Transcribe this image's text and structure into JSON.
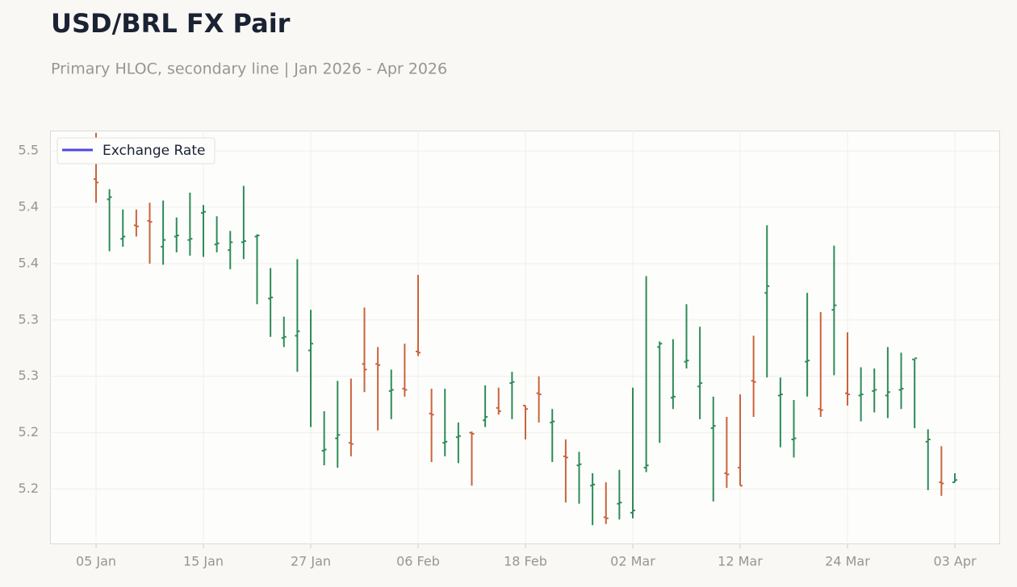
{
  "chart_data": {
    "type": "ohlc",
    "title": "USD/BRL FX Pair",
    "subtitle": "Primary HLOC, secondary line | Jan 2026 - Apr 2026",
    "categories": [
      "05 Jan",
      null,
      null,
      null,
      null,
      null,
      null,
      null,
      "15 Jan",
      null,
      null,
      null,
      null,
      null,
      null,
      null,
      "27 Jan",
      null,
      null,
      null,
      null,
      null,
      null,
      null,
      "06 Feb",
      null,
      null,
      null,
      null,
      null,
      null,
      null,
      "18 Feb",
      null,
      null,
      null,
      null,
      null,
      null,
      null,
      "02 Mar",
      null,
      null,
      null,
      null,
      null,
      null,
      null,
      "12 Mar",
      null,
      null,
      null,
      null,
      null,
      null,
      null,
      "24 Mar",
      null,
      null,
      null,
      null,
      null,
      null,
      null,
      "03 Apr"
    ],
    "series": [
      {
        "name": "Exchange Rate",
        "color": "#4f46e5",
        "up_color": "#2e8b57",
        "down_color": "#c8643c",
        "open": [
          5.475,
          5.457,
          5.422,
          5.434,
          5.438,
          5.415,
          5.424,
          5.421,
          5.445,
          5.417,
          5.412,
          5.419,
          5.424,
          5.369,
          5.334,
          5.336,
          5.323,
          5.234,
          5.245,
          5.241,
          5.311,
          5.311,
          5.287,
          5.289,
          5.322,
          5.267,
          5.241,
          5.246,
          5.25,
          5.261,
          5.272,
          5.294,
          5.274,
          5.285,
          5.259,
          5.229,
          5.221,
          5.203,
          5.175,
          5.187,
          5.179,
          5.219,
          5.326,
          5.281,
          5.313,
          5.291,
          5.254,
          5.214,
          5.219,
          5.296,
          5.374,
          5.283,
          5.244,
          5.313,
          5.271,
          5.359,
          5.285,
          5.283,
          5.287,
          5.283,
          5.288,
          5.315,
          5.242,
          5.206,
          5.206
        ],
        "high": [
          5.516,
          5.466,
          5.448,
          5.448,
          5.454,
          5.456,
          5.441,
          5.463,
          5.452,
          5.442,
          5.429,
          5.469,
          5.426,
          5.396,
          5.353,
          5.404,
          5.359,
          5.269,
          5.296,
          5.298,
          5.361,
          5.326,
          5.306,
          5.329,
          5.39,
          5.289,
          5.289,
          5.259,
          5.251,
          5.292,
          5.29,
          5.304,
          5.274,
          5.3,
          5.271,
          5.244,
          5.233,
          5.214,
          5.206,
          5.217,
          5.29,
          5.389,
          5.331,
          5.333,
          5.364,
          5.344,
          5.282,
          5.264,
          5.284,
          5.336,
          5.434,
          5.299,
          5.279,
          5.374,
          5.357,
          5.416,
          5.339,
          5.308,
          5.307,
          5.326,
          5.321,
          5.315,
          5.253,
          5.238,
          5.214
        ],
        "low": [
          5.454,
          5.411,
          5.415,
          5.424,
          5.4,
          5.399,
          5.41,
          5.407,
          5.406,
          5.41,
          5.395,
          5.404,
          5.364,
          5.335,
          5.326,
          5.304,
          5.255,
          5.221,
          5.219,
          5.229,
          5.286,
          5.252,
          5.262,
          5.282,
          5.318,
          5.224,
          5.229,
          5.223,
          5.203,
          5.255,
          5.266,
          5.262,
          5.244,
          5.259,
          5.224,
          5.188,
          5.187,
          5.168,
          5.169,
          5.173,
          5.174,
          5.215,
          5.241,
          5.271,
          5.307,
          5.262,
          5.189,
          5.201,
          5.203,
          5.264,
          5.299,
          5.237,
          5.228,
          5.282,
          5.264,
          5.301,
          5.274,
          5.26,
          5.268,
          5.263,
          5.271,
          5.254,
          5.199,
          5.194,
          5.206
        ],
        "close": [
          5.472,
          5.459,
          5.424,
          5.433,
          5.437,
          5.421,
          5.425,
          5.422,
          5.446,
          5.418,
          5.419,
          5.42,
          5.425,
          5.37,
          5.335,
          5.34,
          5.329,
          5.235,
          5.248,
          5.24,
          5.306,
          5.31,
          5.288,
          5.288,
          5.321,
          5.266,
          5.242,
          5.247,
          5.249,
          5.264,
          5.269,
          5.295,
          5.271,
          5.284,
          5.26,
          5.228,
          5.222,
          5.204,
          5.174,
          5.188,
          5.181,
          5.221,
          5.329,
          5.282,
          5.314,
          5.294,
          5.256,
          5.213,
          5.203,
          5.295,
          5.38,
          5.284,
          5.245,
          5.314,
          5.27,
          5.363,
          5.284,
          5.284,
          5.288,
          5.286,
          5.289,
          5.316,
          5.244,
          5.205,
          5.208
        ]
      }
    ],
    "ylim": [
      5.151,
      5.518
    ],
    "yticks": [
      {
        "value": 5.2,
        "label": "5.2"
      },
      {
        "value": 5.25,
        "label": "5.2"
      },
      {
        "value": 5.3,
        "label": "5.3"
      },
      {
        "value": 5.35,
        "label": "5.3"
      },
      {
        "value": 5.4,
        "label": "5.4"
      },
      {
        "value": 5.45,
        "label": "5.4"
      },
      {
        "value": 5.5,
        "label": "5.5"
      }
    ],
    "grid": true,
    "legend": "upper left"
  }
}
